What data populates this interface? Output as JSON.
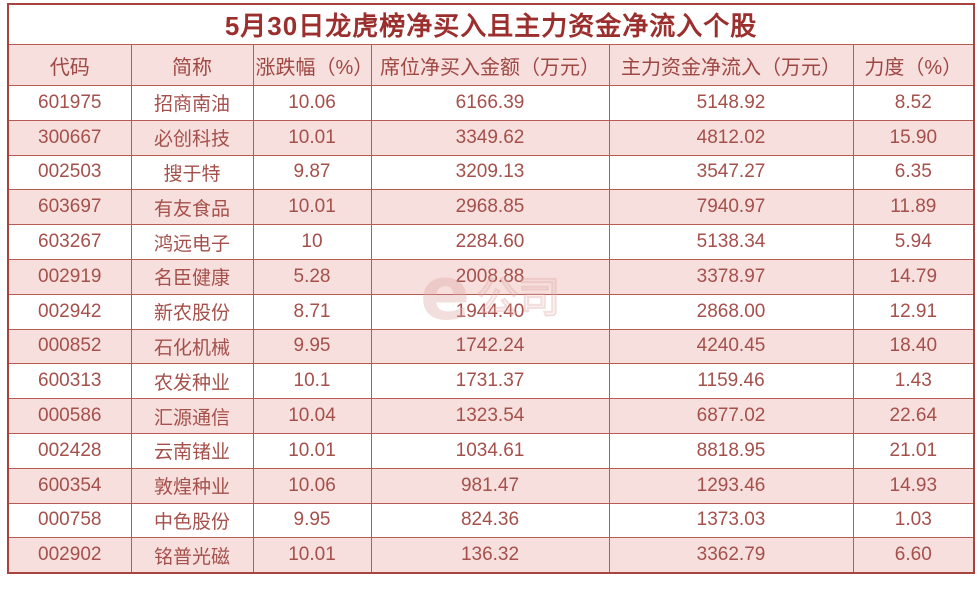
{
  "chart_data": {
    "type": "table",
    "title": "5月30日龙虎榜净买入且主力资金净流入个股",
    "columns": [
      "代码",
      "简称",
      "涨跌幅（%）",
      "席位净买入金额（万元）",
      "主力资金净流入（万元）",
      "力度（%）"
    ],
    "rows": [
      [
        "601975",
        "招商南油",
        "10.06",
        "6166.39",
        "5148.92",
        "8.52"
      ],
      [
        "300667",
        "必创科技",
        "10.01",
        "3349.62",
        "4812.02",
        "15.90"
      ],
      [
        "002503",
        "搜于特",
        "9.87",
        "3209.13",
        "3547.27",
        "6.35"
      ],
      [
        "603697",
        "有友食品",
        "10.01",
        "2968.85",
        "7940.97",
        "11.89"
      ],
      [
        "603267",
        "鸿远电子",
        "10",
        "2284.60",
        "5138.34",
        "5.94"
      ],
      [
        "002919",
        "名臣健康",
        "5.28",
        "2008.88",
        "3378.97",
        "14.79"
      ],
      [
        "002942",
        "新农股份",
        "8.71",
        "1944.40",
        "2868.00",
        "12.91"
      ],
      [
        "000852",
        "石化机械",
        "9.95",
        "1742.24",
        "4240.45",
        "18.40"
      ],
      [
        "600313",
        "农发种业",
        "10.1",
        "1731.37",
        "1159.46",
        "1.43"
      ],
      [
        "000586",
        "汇源通信",
        "10.04",
        "1323.54",
        "6877.02",
        "22.64"
      ],
      [
        "002428",
        "云南锗业",
        "10.01",
        "1034.61",
        "8818.95",
        "21.01"
      ],
      [
        "600354",
        "敦煌种业",
        "10.06",
        "981.47",
        "1293.46",
        "14.93"
      ],
      [
        "000758",
        "中色股份",
        "9.95",
        "824.36",
        "1373.03",
        "1.03"
      ],
      [
        "002902",
        "铭普光磁",
        "10.01",
        "136.32",
        "3362.79",
        "6.60"
      ]
    ],
    "layout_hints": {
      "stripe_pattern": "even data rows pink",
      "all_cells_centered": true
    }
  },
  "watermark": {
    "logo_letter": "e",
    "logo_text": "公司"
  },
  "colors": {
    "title_text": "#9b2f2e",
    "cell_text": "#a5504b",
    "header_text": "#9f4743",
    "grid_border": "#b75b54",
    "outer_border": "#a84440",
    "stripe_background": "#f6dfdd",
    "row_background": "#ffffff",
    "watermark": "#dfaaa6"
  }
}
